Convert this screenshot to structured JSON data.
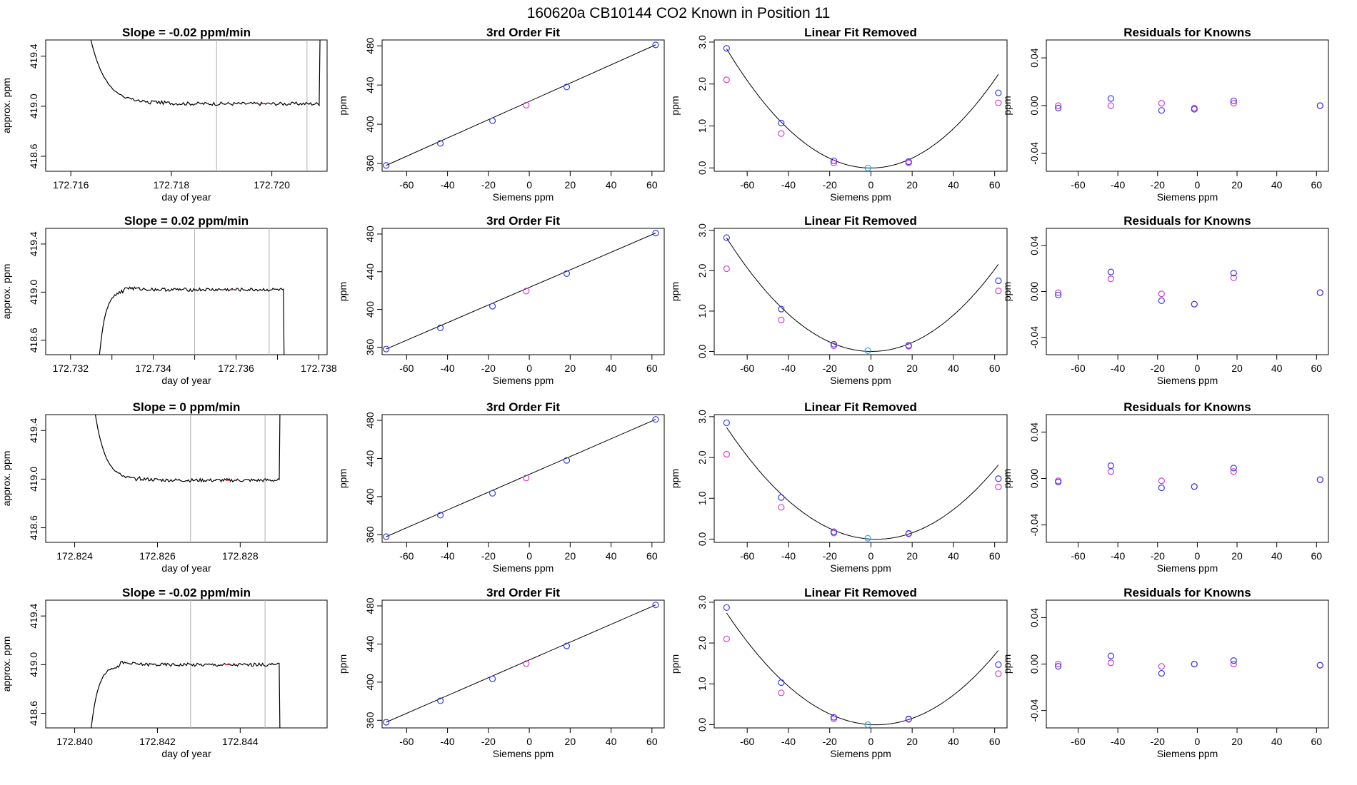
{
  "suptitle": "160620a      CB10144    CO2 Known in Position  11",
  "colors": {
    "axis": "#000000",
    "blue": "#3a3af0",
    "magenta": "#d040d0",
    "cyan": "#2ea8e0",
    "vline": "#b0b0b0",
    "red": "#e03030"
  },
  "chart_data": [
    {
      "type": "line",
      "row": 1,
      "col": 1,
      "title": "Slope =  -0.02  ppm/min",
      "xlabel": "day of year",
      "ylabel": "approx. ppm",
      "xlim": [
        172.7155,
        172.7211
      ],
      "ylim": [
        418.48,
        419.53
      ],
      "xticks": [
        172.716,
        172.718,
        172.72
      ],
      "xtick_labels": [
        "172.716",
        "172.718",
        "172.720"
      ],
      "yticks": [
        418.6,
        419.0,
        419.4
      ],
      "ytick_labels": [
        "418.6",
        "419.0",
        "419.4"
      ],
      "vlines": [
        172.7189,
        172.7207
      ],
      "shape": "rise",
      "x_start": 172.7164,
      "x_end": 172.721,
      "rise_end": 172.7176,
      "plateau": 419.02,
      "edge": 419.53
    },
    {
      "type": "scatter",
      "row": 1,
      "col": 2,
      "title": "3rd Order Fit",
      "xlabel": "Siemens ppm",
      "ylabel": "ppm",
      "xlim": [
        -72,
        66
      ],
      "ylim": [
        352,
        486
      ],
      "xticks": [
        -60,
        -40,
        -20,
        0,
        20,
        40,
        60
      ],
      "yticks": [
        360,
        400,
        440,
        480
      ],
      "points_blue": [
        [
          -70,
          358
        ],
        [
          -43.5,
          380.5
        ],
        [
          -18,
          403.5
        ],
        [
          18.3,
          438
        ],
        [
          61.8,
          481
        ]
      ],
      "points_magenta": [
        [
          -1.5,
          419.5
        ]
      ],
      "line": [
        [
          -70,
          358
        ],
        [
          61.8,
          481
        ]
      ]
    },
    {
      "type": "scatter",
      "row": 1,
      "col": 3,
      "title": "Linear Fit Removed",
      "xlabel": "Siemens ppm",
      "ylabel": "ppm",
      "xlim": [
        -76,
        66
      ],
      "ylim": [
        -0.08,
        3.05
      ],
      "xticks": [
        -60,
        -40,
        -20,
        0,
        20,
        40,
        60
      ],
      "yticks": [
        0,
        1,
        2,
        3
      ],
      "ytick_labels": [
        "0.0",
        "1.0",
        "2.0",
        "3.0"
      ],
      "curve": {
        "a": 0.000582,
        "b": 0.00016,
        "c": -0.002
      },
      "points_blue": [
        [
          -70,
          2.85
        ],
        [
          -43.5,
          1.07
        ],
        [
          -18,
          0.17
        ],
        [
          18.3,
          0.15
        ],
        [
          61.8,
          1.79
        ]
      ],
      "points_magenta": [
        [
          -70,
          2.1
        ],
        [
          -43.5,
          0.82
        ],
        [
          -18,
          0.12
        ],
        [
          18.3,
          0.12
        ],
        [
          61.8,
          1.55
        ]
      ],
      "points_cyan": [
        [
          -1.5,
          0.0
        ]
      ]
    },
    {
      "type": "scatter",
      "row": 1,
      "col": 4,
      "title": "Residuals for Knowns",
      "xlabel": "Siemens ppm",
      "ylabel": "ppm",
      "xlim": [
        -76,
        66
      ],
      "ylim": [
        -0.055,
        0.055
      ],
      "xticks": [
        -60,
        -40,
        -20,
        0,
        20,
        40,
        60
      ],
      "yticks": [
        -0.04,
        0,
        0.04
      ],
      "ytick_labels": [
        "-0.04",
        "0.00",
        "0.04"
      ],
      "points_blue": [
        [
          -70,
          -0.002
        ],
        [
          -43.5,
          0.006
        ],
        [
          -18,
          -0.004
        ],
        [
          -1.5,
          -0.003
        ],
        [
          18.3,
          0.004
        ],
        [
          61.8,
          0.0
        ]
      ],
      "points_magenta": [
        [
          -70,
          0.0
        ],
        [
          -43.5,
          0.0
        ],
        [
          -18,
          0.002
        ],
        [
          -1.5,
          -0.002
        ],
        [
          18.3,
          0.002
        ],
        [
          61.8,
          0.0
        ]
      ]
    },
    {
      "type": "line",
      "row": 2,
      "col": 1,
      "title": "Slope =  0.02  ppm/min",
      "xlabel": "day of year",
      "ylabel": "approx. ppm",
      "xlim": [
        172.7314,
        172.7382
      ],
      "ylim": [
        418.48,
        419.53
      ],
      "xticks": [
        172.732,
        172.733,
        172.734,
        172.735,
        172.736,
        172.737,
        172.738
      ],
      "xtick_labels": [
        "172.732",
        "",
        "172.734",
        "",
        "172.736",
        "",
        "172.738"
      ],
      "yticks": [
        418.6,
        419.0,
        419.4
      ],
      "ytick_labels": [
        "418.6",
        "419.0",
        "419.4"
      ],
      "vlines": [
        172.735,
        172.7368
      ],
      "shape": "fall",
      "x_start": 172.7327,
      "x_end": 172.7372,
      "rise_end": 172.7333,
      "plateau": 419.02,
      "edge": 418.48
    },
    {
      "type": "scatter",
      "row": 2,
      "col": 2,
      "title": "3rd Order Fit",
      "xlabel": "Siemens ppm",
      "ylabel": "ppm",
      "xlim": [
        -72,
        66
      ],
      "ylim": [
        352,
        486
      ],
      "xticks": [
        -60,
        -40,
        -20,
        0,
        20,
        40,
        60
      ],
      "yticks": [
        360,
        400,
        440,
        480
      ],
      "points_blue": [
        [
          -70,
          358
        ],
        [
          -43.5,
          380.5
        ],
        [
          -18,
          403.5
        ],
        [
          18.3,
          438
        ],
        [
          61.8,
          481
        ]
      ],
      "points_magenta": [
        [
          -1.5,
          419.5
        ]
      ],
      "line": [
        [
          -70,
          358
        ],
        [
          61.8,
          481
        ]
      ]
    },
    {
      "type": "scatter",
      "row": 2,
      "col": 3,
      "title": "Linear Fit Removed",
      "xlabel": "Siemens ppm",
      "ylabel": "ppm",
      "xlim": [
        -76,
        66
      ],
      "ylim": [
        -0.08,
        3.05
      ],
      "xticks": [
        -60,
        -40,
        -20,
        0,
        20,
        40,
        60
      ],
      "yticks": [
        0,
        1,
        2,
        3
      ],
      "ytick_labels": [
        "0.0",
        "1.0",
        "2.0",
        "3.0"
      ],
      "curve": {
        "a": 0.00057,
        "b": -0.0003,
        "c": 0.0
      },
      "points_blue": [
        [
          -70,
          2.82
        ],
        [
          -43.5,
          1.05
        ],
        [
          -18,
          0.18
        ],
        [
          18.3,
          0.15
        ],
        [
          61.8,
          1.75
        ]
      ],
      "points_magenta": [
        [
          -70,
          2.05
        ],
        [
          -43.5,
          0.78
        ],
        [
          -18,
          0.14
        ],
        [
          18.3,
          0.13
        ],
        [
          61.8,
          1.5
        ]
      ],
      "points_cyan": [
        [
          -1.5,
          0.02
        ]
      ]
    },
    {
      "type": "scatter",
      "row": 2,
      "col": 4,
      "title": "Residuals for Knowns",
      "xlabel": "Siemens ppm",
      "ylabel": "ppm",
      "xlim": [
        -76,
        66
      ],
      "ylim": [
        -0.055,
        0.055
      ],
      "xticks": [
        -60,
        -40,
        -20,
        0,
        20,
        40,
        60
      ],
      "yticks": [
        -0.04,
        0,
        0.04
      ],
      "ytick_labels": [
        "-0.04",
        "0.00",
        "0.04"
      ],
      "points_blue": [
        [
          -70,
          -0.003
        ],
        [
          -43.5,
          0.017
        ],
        [
          -18,
          -0.008
        ],
        [
          -1.5,
          -0.011
        ],
        [
          18.3,
          0.016
        ],
        [
          61.8,
          -0.001
        ]
      ],
      "points_magenta": [
        [
          -70,
          -0.001
        ],
        [
          -43.5,
          0.011
        ],
        [
          -18,
          -0.002
        ],
        [
          -1.5,
          -0.011
        ],
        [
          18.3,
          0.012
        ],
        [
          61.8,
          -0.001
        ]
      ]
    },
    {
      "type": "line",
      "row": 3,
      "col": 1,
      "title": "Slope =  0  ppm/min",
      "xlabel": "day of year",
      "ylabel": "approx. ppm",
      "xlim": [
        172.8233,
        172.8301
      ],
      "ylim": [
        418.48,
        419.53
      ],
      "xticks": [
        172.824,
        172.826,
        172.828
      ],
      "xtick_labels": [
        "172.824",
        "172.826",
        "172.828"
      ],
      "yticks": [
        418.6,
        419.0,
        419.4
      ],
      "ytick_labels": [
        "418.6",
        "419.0",
        "419.4"
      ],
      "vlines": [
        172.8268,
        172.8286
      ],
      "shape": "rise",
      "x_start": 172.8245,
      "x_end": 172.829,
      "rise_end": 172.8255,
      "plateau": 418.99,
      "edge": 419.53
    },
    {
      "type": "scatter",
      "row": 3,
      "col": 2,
      "title": "3rd Order Fit",
      "xlabel": "Siemens ppm",
      "ylabel": "ppm",
      "xlim": [
        -72,
        66
      ],
      "ylim": [
        352,
        486
      ],
      "xticks": [
        -60,
        -40,
        -20,
        0,
        20,
        40,
        60
      ],
      "yticks": [
        360,
        400,
        440,
        480
      ],
      "points_blue": [
        [
          -70,
          358
        ],
        [
          -43.5,
          380.5
        ],
        [
          -18,
          403.5
        ],
        [
          18.3,
          438
        ],
        [
          61.8,
          481
        ]
      ],
      "points_magenta": [
        [
          -1.5,
          419.5
        ]
      ],
      "line": [
        [
          -70,
          358
        ],
        [
          61.8,
          481
        ]
      ]
    },
    {
      "type": "scatter",
      "row": 3,
      "col": 3,
      "title": "Linear Fit Removed",
      "xlabel": "Siemens ppm",
      "ylabel": "ppm",
      "xlim": [
        -76,
        66
      ],
      "ylim": [
        -0.08,
        3.05
      ],
      "xticks": [
        -60,
        -40,
        -20,
        0,
        20,
        40,
        60
      ],
      "yticks": [
        0,
        1,
        2,
        3
      ],
      "ytick_labels": [
        "0.0",
        "1.0",
        "2.0",
        "3.0"
      ],
      "curve": {
        "a": 0.00052,
        "b": -0.0027,
        "c": 0.0
      },
      "points_blue": [
        [
          -70,
          2.85
        ],
        [
          -43.5,
          1.02
        ],
        [
          -18,
          0.18
        ],
        [
          18.3,
          0.14
        ],
        [
          61.8,
          1.48
        ]
      ],
      "points_magenta": [
        [
          -70,
          2.08
        ],
        [
          -43.5,
          0.78
        ],
        [
          -18,
          0.15
        ],
        [
          18.3,
          0.13
        ],
        [
          61.8,
          1.28
        ]
      ],
      "points_cyan": [
        [
          -1.5,
          0.02
        ]
      ]
    },
    {
      "type": "scatter",
      "row": 3,
      "col": 4,
      "title": "Residuals for Knowns",
      "xlabel": "Siemens ppm",
      "ylabel": "ppm",
      "xlim": [
        -76,
        66
      ],
      "ylim": [
        -0.055,
        0.055
      ],
      "xticks": [
        -60,
        -40,
        -20,
        0,
        20,
        40,
        60
      ],
      "yticks": [
        -0.04,
        0,
        0.04
      ],
      "ytick_labels": [
        "-0.04",
        "0.00",
        "0.04"
      ],
      "points_blue": [
        [
          -70,
          -0.003
        ],
        [
          -43.5,
          0.011
        ],
        [
          -18,
          -0.008
        ],
        [
          -1.5,
          -0.007
        ],
        [
          18.3,
          0.009
        ],
        [
          61.8,
          -0.001
        ]
      ],
      "points_magenta": [
        [
          -70,
          -0.002
        ],
        [
          -43.5,
          0.006
        ],
        [
          -18,
          -0.002
        ],
        [
          -1.5,
          -0.007
        ],
        [
          18.3,
          0.006
        ],
        [
          61.8,
          -0.001
        ]
      ]
    },
    {
      "type": "line",
      "row": 4,
      "col": 1,
      "title": "Slope =  -0.02  ppm/min",
      "xlabel": "day of year",
      "ylabel": "approx. ppm",
      "xlim": [
        172.8393,
        172.8461
      ],
      "ylim": [
        418.48,
        419.53
      ],
      "xticks": [
        172.84,
        172.842,
        172.844
      ],
      "xtick_labels": [
        "172.840",
        "172.842",
        "172.844"
      ],
      "yticks": [
        418.6,
        419.0,
        419.4
      ],
      "ytick_labels": [
        "418.6",
        "419.0",
        "419.4"
      ],
      "vlines": [
        172.8428,
        172.8446
      ],
      "shape": "fall",
      "x_start": 172.8404,
      "x_end": 172.845,
      "rise_end": 172.8411,
      "plateau": 419.0,
      "edge": 418.48
    },
    {
      "type": "scatter",
      "row": 4,
      "col": 2,
      "title": "3rd Order Fit",
      "xlabel": "Siemens ppm",
      "ylabel": "ppm",
      "xlim": [
        -72,
        66
      ],
      "ylim": [
        352,
        486
      ],
      "xticks": [
        -60,
        -40,
        -20,
        0,
        20,
        40,
        60
      ],
      "yticks": [
        360,
        400,
        440,
        480
      ],
      "points_blue": [
        [
          -70,
          358
        ],
        [
          -43.5,
          380.5
        ],
        [
          -18,
          403.5
        ],
        [
          18.3,
          438
        ],
        [
          61.8,
          481
        ]
      ],
      "points_magenta": [
        [
          -1.5,
          419.5
        ]
      ],
      "line": [
        [
          -70,
          358
        ],
        [
          61.8,
          481
        ]
      ]
    },
    {
      "type": "scatter",
      "row": 4,
      "col": 3,
      "title": "Linear Fit Removed",
      "xlabel": "Siemens ppm",
      "ylabel": "ppm",
      "xlim": [
        -76,
        66
      ],
      "ylim": [
        -0.08,
        3.05
      ],
      "xticks": [
        -60,
        -40,
        -20,
        0,
        20,
        40,
        60
      ],
      "yticks": [
        0,
        1,
        2,
        3
      ],
      "ytick_labels": [
        "0.0",
        "1.0",
        "2.0",
        "3.0"
      ],
      "curve": {
        "a": 0.00052,
        "b": -0.0027,
        "c": 0.0
      },
      "points_blue": [
        [
          -70,
          2.87
        ],
        [
          -43.5,
          1.03
        ],
        [
          -18,
          0.18
        ],
        [
          18.3,
          0.14
        ],
        [
          61.8,
          1.47
        ]
      ],
      "points_magenta": [
        [
          -70,
          2.1
        ],
        [
          -43.5,
          0.78
        ],
        [
          -18,
          0.14
        ],
        [
          18.3,
          0.13
        ],
        [
          61.8,
          1.25
        ]
      ],
      "points_cyan": [
        [
          -1.5,
          0.0
        ]
      ]
    },
    {
      "type": "scatter",
      "row": 4,
      "col": 4,
      "title": "Residuals for Knowns",
      "xlabel": "Siemens ppm",
      "ylabel": "ppm",
      "xlim": [
        -76,
        66
      ],
      "ylim": [
        -0.055,
        0.055
      ],
      "xticks": [
        -60,
        -40,
        -20,
        0,
        20,
        40,
        60
      ],
      "yticks": [
        -0.04,
        0,
        0.04
      ],
      "ytick_labels": [
        "-0.04",
        "0.00",
        "0.04"
      ],
      "points_blue": [
        [
          -70,
          -0.002
        ],
        [
          -43.5,
          0.007
        ],
        [
          -18,
          -0.008
        ],
        [
          -1.5,
          0.0
        ],
        [
          18.3,
          0.003
        ],
        [
          61.8,
          -0.001
        ]
      ],
      "points_magenta": [
        [
          -70,
          0.0
        ],
        [
          -43.5,
          0.001
        ],
        [
          -18,
          -0.002
        ],
        [
          -1.5,
          0.0
        ],
        [
          18.3,
          0.0
        ],
        [
          61.8,
          -0.001
        ]
      ]
    }
  ]
}
